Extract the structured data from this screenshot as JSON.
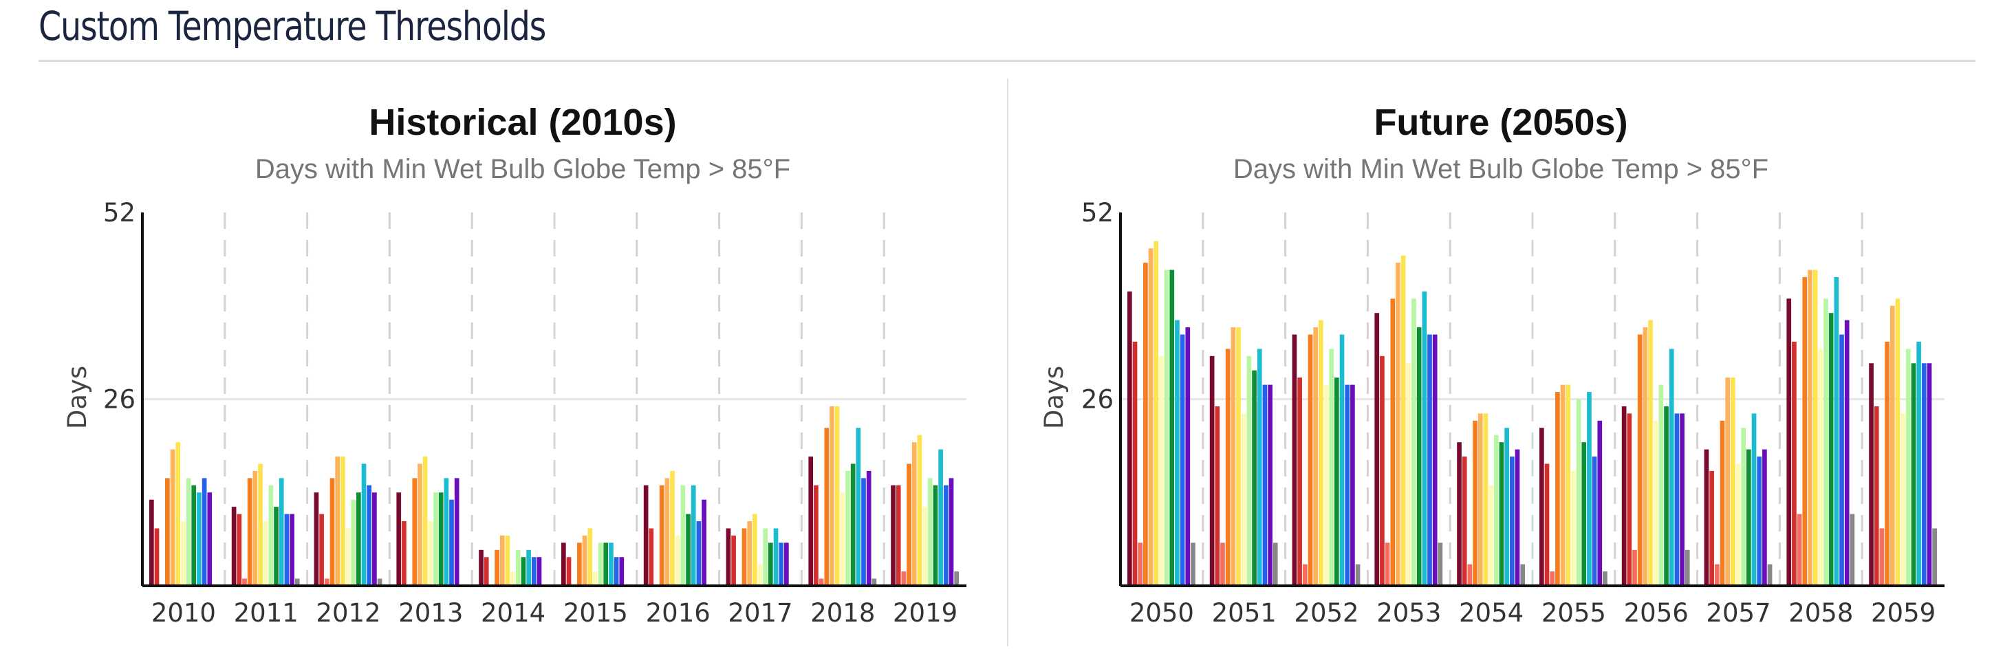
{
  "header": {
    "title": "Custom Temperature Thresholds"
  },
  "series_colors": [
    "#7a0a2c",
    "#d32f2f",
    "#f46d5e",
    "#f57c1f",
    "#fdb35c",
    "#fde34f",
    "#fdfab6",
    "#b7f7a4",
    "#0f8f35",
    "#1cbcd0",
    "#2563eb",
    "#6a0dbd",
    "#888888"
  ],
  "chart_data": [
    {
      "type": "bar",
      "title": "Historical (2010s)",
      "subtitle": "Days with Min Wet Bulb Globe Temp > 85°F",
      "xlabel": "",
      "ylabel": "Days",
      "ylim": [
        0,
        52
      ],
      "yticks": [
        26,
        52
      ],
      "grid": {
        "x": "dashed",
        "y": "solid"
      },
      "categories": [
        "2010",
        "2011",
        "2012",
        "2013",
        "2014",
        "2015",
        "2016",
        "2017",
        "2018",
        "2019"
      ],
      "bars": [
        [
          12,
          8,
          0,
          15,
          19,
          20,
          9,
          15,
          14,
          13,
          15,
          13,
          0
        ],
        [
          11,
          10,
          1,
          15,
          16,
          17,
          9,
          14,
          11,
          15,
          10,
          10,
          1
        ],
        [
          13,
          10,
          1,
          15,
          18,
          18,
          8,
          12,
          13,
          17,
          14,
          13,
          1
        ],
        [
          13,
          9,
          0,
          15,
          17,
          18,
          9,
          13,
          13,
          15,
          12,
          15,
          0
        ],
        [
          5,
          4,
          0,
          5,
          7,
          7,
          2,
          5,
          4,
          5,
          4,
          4,
          0
        ],
        [
          6,
          4,
          0,
          6,
          7,
          8,
          2,
          6,
          6,
          6,
          4,
          4,
          0
        ],
        [
          14,
          8,
          0,
          14,
          15,
          16,
          7,
          14,
          10,
          14,
          9,
          12,
          0
        ],
        [
          8,
          7,
          0,
          8,
          9,
          10,
          3,
          8,
          6,
          8,
          6,
          6,
          0
        ],
        [
          18,
          14,
          1,
          22,
          25,
          25,
          13,
          16,
          17,
          22,
          15,
          16,
          1
        ],
        [
          14,
          14,
          2,
          17,
          20,
          21,
          11,
          15,
          14,
          19,
          14,
          15,
          2
        ]
      ]
    },
    {
      "type": "bar",
      "title": "Future (2050s)",
      "subtitle": "Days with Min Wet Bulb Globe Temp > 85°F",
      "xlabel": "",
      "ylabel": "Days",
      "ylim": [
        0,
        52
      ],
      "yticks": [
        26,
        52
      ],
      "grid": {
        "x": "dashed",
        "y": "solid"
      },
      "categories": [
        "2050",
        "2051",
        "2052",
        "2053",
        "2054",
        "2055",
        "2056",
        "2057",
        "2058",
        "2059"
      ],
      "bars": [
        [
          41,
          34,
          6,
          45,
          47,
          48,
          32,
          44,
          44,
          37,
          35,
          36,
          6
        ],
        [
          32,
          25,
          6,
          33,
          36,
          36,
          24,
          32,
          30,
          33,
          28,
          28,
          6
        ],
        [
          35,
          29,
          3,
          35,
          36,
          37,
          28,
          33,
          29,
          35,
          28,
          28,
          3
        ],
        [
          38,
          32,
          6,
          40,
          45,
          46,
          31,
          40,
          36,
          41,
          35,
          35,
          6
        ],
        [
          20,
          18,
          3,
          23,
          24,
          24,
          14,
          21,
          20,
          22,
          18,
          19,
          3
        ],
        [
          22,
          17,
          2,
          27,
          28,
          28,
          16,
          26,
          20,
          27,
          18,
          23,
          2
        ],
        [
          25,
          24,
          5,
          35,
          36,
          37,
          23,
          28,
          25,
          33,
          24,
          24,
          5
        ],
        [
          19,
          16,
          3,
          23,
          29,
          29,
          17,
          22,
          19,
          24,
          18,
          19,
          3
        ],
        [
          40,
          34,
          10,
          43,
          44,
          44,
          33,
          40,
          38,
          43,
          35,
          37,
          10
        ],
        [
          31,
          25,
          8,
          34,
          39,
          40,
          24,
          33,
          31,
          34,
          31,
          31,
          8
        ]
      ]
    }
  ]
}
